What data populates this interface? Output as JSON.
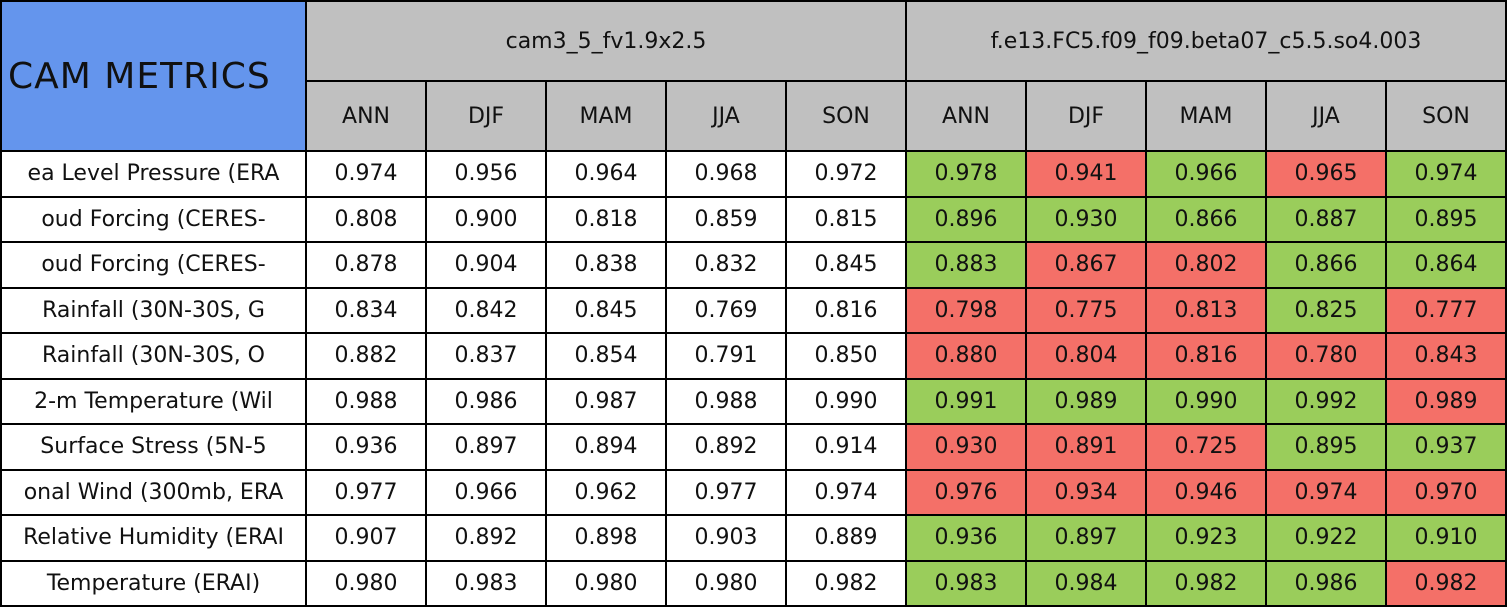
{
  "header": {
    "title": "CAM METRICS"
  },
  "groups": [
    {
      "name": "cam3_5_fv1.9x2.5",
      "seasons": [
        "ANN",
        "DJF",
        "MAM",
        "JJA",
        "SON"
      ]
    },
    {
      "name": "f.e13.FC5.f09_f09.beta07_c5.5.so4.003",
      "seasons": [
        "ANN",
        "DJF",
        "MAM",
        "JJA",
        "SON"
      ]
    }
  ],
  "palette": {
    "header": "#c0c0c0",
    "title": "#6495ed",
    "white": "#ffffff",
    "green": "#9acd5b",
    "red": "#f47068"
  },
  "rows": [
    {
      "label": "ea Level Pressure (ERA",
      "values": [
        "0.974",
        "0.956",
        "0.964",
        "0.968",
        "0.972",
        "0.978",
        "0.941",
        "0.966",
        "0.965",
        "0.974"
      ],
      "colors": [
        "white",
        "white",
        "white",
        "white",
        "white",
        "green",
        "red",
        "green",
        "red",
        "green"
      ]
    },
    {
      "label": "oud Forcing (CERES-",
      "values": [
        "0.808",
        "0.900",
        "0.818",
        "0.859",
        "0.815",
        "0.896",
        "0.930",
        "0.866",
        "0.887",
        "0.895"
      ],
      "colors": [
        "white",
        "white",
        "white",
        "white",
        "white",
        "green",
        "green",
        "green",
        "green",
        "green"
      ]
    },
    {
      "label": "oud Forcing (CERES-",
      "values": [
        "0.878",
        "0.904",
        "0.838",
        "0.832",
        "0.845",
        "0.883",
        "0.867",
        "0.802",
        "0.866",
        "0.864"
      ],
      "colors": [
        "white",
        "white",
        "white",
        "white",
        "white",
        "green",
        "red",
        "red",
        "green",
        "green"
      ]
    },
    {
      "label": "Rainfall (30N-30S, G",
      "values": [
        "0.834",
        "0.842",
        "0.845",
        "0.769",
        "0.816",
        "0.798",
        "0.775",
        "0.813",
        "0.825",
        "0.777"
      ],
      "colors": [
        "white",
        "white",
        "white",
        "white",
        "white",
        "red",
        "red",
        "red",
        "green",
        "red"
      ]
    },
    {
      "label": "Rainfall (30N-30S, O",
      "values": [
        "0.882",
        "0.837",
        "0.854",
        "0.791",
        "0.850",
        "0.880",
        "0.804",
        "0.816",
        "0.780",
        "0.843"
      ],
      "colors": [
        "white",
        "white",
        "white",
        "white",
        "white",
        "red",
        "red",
        "red",
        "red",
        "red"
      ]
    },
    {
      "label": "2-m Temperature (Wil",
      "values": [
        "0.988",
        "0.986",
        "0.987",
        "0.988",
        "0.990",
        "0.991",
        "0.989",
        "0.990",
        "0.992",
        "0.989"
      ],
      "colors": [
        "white",
        "white",
        "white",
        "white",
        "white",
        "green",
        "green",
        "green",
        "green",
        "red"
      ]
    },
    {
      "label": "Surface Stress (5N-5",
      "values": [
        "0.936",
        "0.897",
        "0.894",
        "0.892",
        "0.914",
        "0.930",
        "0.891",
        "0.725",
        "0.895",
        "0.937"
      ],
      "colors": [
        "white",
        "white",
        "white",
        "white",
        "white",
        "red",
        "red",
        "red",
        "green",
        "green"
      ]
    },
    {
      "label": "onal Wind (300mb, ERA",
      "values": [
        "0.977",
        "0.966",
        "0.962",
        "0.977",
        "0.974",
        "0.976",
        "0.934",
        "0.946",
        "0.974",
        "0.970"
      ],
      "colors": [
        "white",
        "white",
        "white",
        "white",
        "white",
        "red",
        "red",
        "red",
        "red",
        "red"
      ]
    },
    {
      "label": "Relative Humidity (ERAI",
      "values": [
        "0.907",
        "0.892",
        "0.898",
        "0.903",
        "0.889",
        "0.936",
        "0.897",
        "0.923",
        "0.922",
        "0.910"
      ],
      "colors": [
        "white",
        "white",
        "white",
        "white",
        "white",
        "green",
        "green",
        "green",
        "green",
        "green"
      ]
    },
    {
      "label": "Temperature (ERAI)",
      "values": [
        "0.980",
        "0.983",
        "0.980",
        "0.980",
        "0.982",
        "0.983",
        "0.984",
        "0.982",
        "0.986",
        "0.982"
      ],
      "colors": [
        "white",
        "white",
        "white",
        "white",
        "white",
        "green",
        "green",
        "green",
        "green",
        "red"
      ]
    }
  ]
}
